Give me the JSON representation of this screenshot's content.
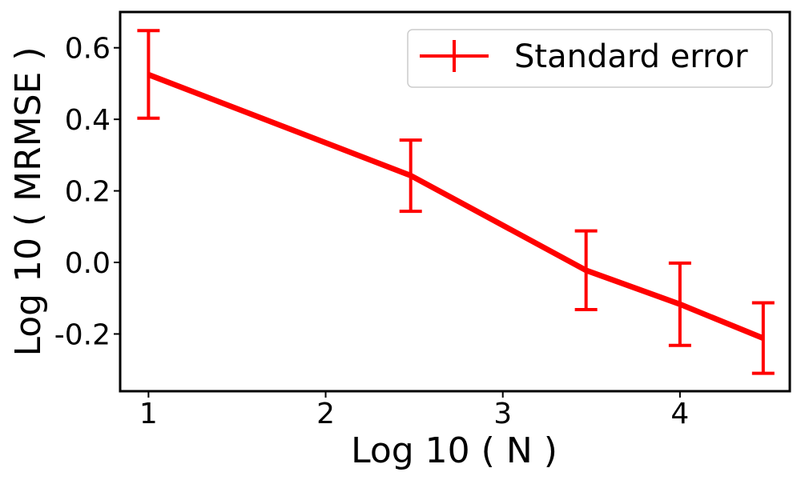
{
  "chart_data": {
    "type": "line",
    "xlabel": "Log 10 ( N )",
    "ylabel": "Log 10 ( MRMSE )",
    "xlim": [
      0.84,
      4.62
    ],
    "ylim": [
      -0.36,
      0.7
    ],
    "x_ticks": [
      1,
      2,
      3,
      4
    ],
    "x_tick_labels": [
      "1",
      "2",
      "3",
      "4"
    ],
    "y_ticks": [
      0.6,
      0.4,
      0.2,
      0.0,
      -0.2
    ],
    "y_tick_labels": [
      "0.6",
      "0.4",
      "0.2",
      "0.0",
      "-0.2"
    ],
    "grid": false,
    "legend_position": "top-right",
    "series": [
      {
        "name": "Standard error",
        "color": "#ff0000",
        "x": [
          1.0,
          2.48,
          3.47,
          4.0,
          4.47
        ],
        "y": [
          0.525,
          0.243,
          -0.022,
          -0.117,
          -0.212
        ],
        "err_low": [
          0.403,
          0.143,
          -0.132,
          -0.232,
          -0.31
        ],
        "err_high": [
          0.648,
          0.342,
          0.088,
          -0.002,
          -0.113
        ]
      }
    ]
  }
}
